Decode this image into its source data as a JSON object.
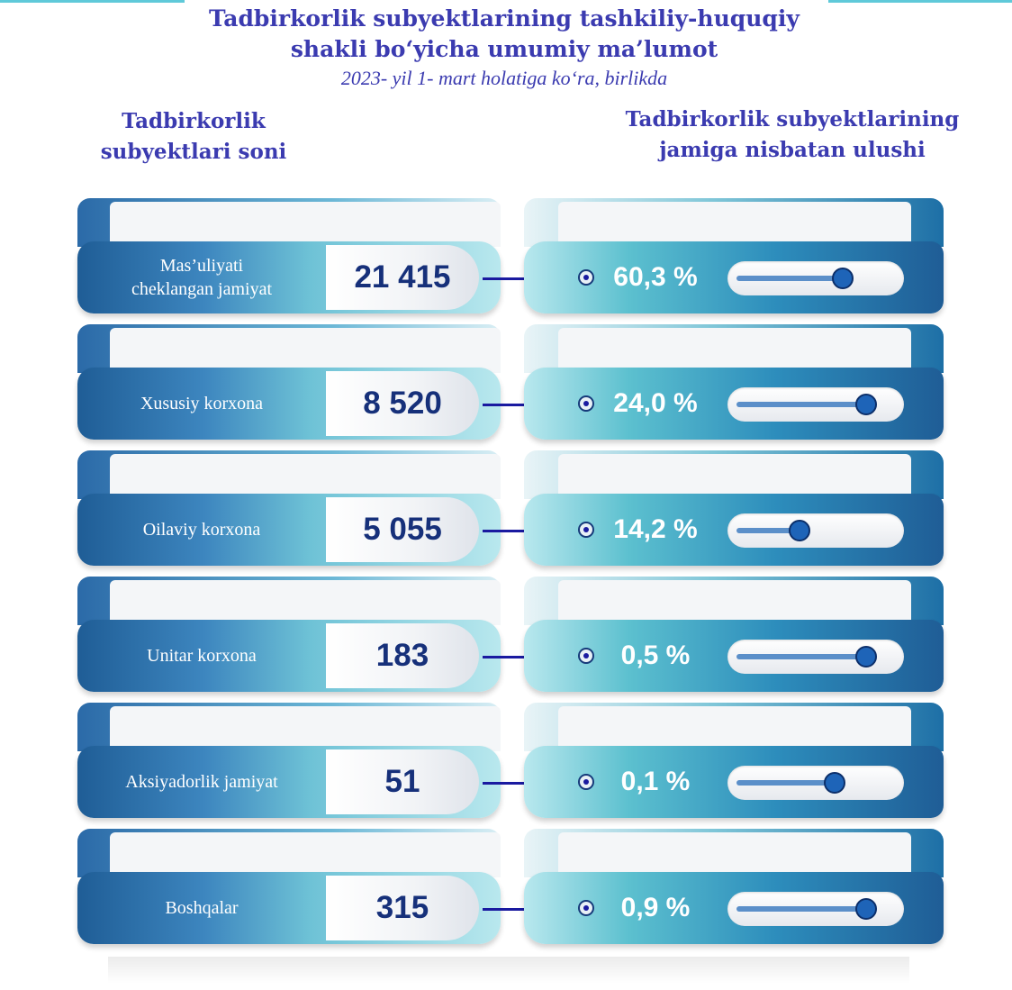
{
  "title_line1": "Tadbirkorlik subyektlarining tashkiliy-huquqiy",
  "title_line2": "shakli bo‘yicha umumiy ma’lumot",
  "subtitle": "2023- yil 1- mart holatiga ko‘ra, birlikda",
  "left_header_line1": "Tadbirkorlik",
  "left_header_line2": "subyektlari soni",
  "right_header_line1": "Tadbirkorlik  subyektlarining",
  "right_header_line2": "jamiga nisbatan  ulushi",
  "colors": {
    "title": "#3b3bb0",
    "value_text": "#16307a",
    "knob": "#1e64b8"
  },
  "rows": [
    {
      "label_line1": "Mas’uliyati",
      "label_line2": "cheklangan jamiyat",
      "value": "21 415",
      "share": "60,3 %",
      "slider_level": 0.7
    },
    {
      "label_line1": "Xususiy korxona",
      "label_line2": "",
      "value": "8 520",
      "share": "24,0 %",
      "slider_level": 0.87
    },
    {
      "label_line1": "Oilaviy korxona",
      "label_line2": "",
      "value": "5 055",
      "share": "14,2 %",
      "slider_level": 0.38
    },
    {
      "label_line1": "Unitar korxona",
      "label_line2": "",
      "value": "183",
      "share": "0,5 %",
      "slider_level": 0.87
    },
    {
      "label_line1": "Aksiyadorlik jamiyat",
      "label_line2": "",
      "value": "51",
      "share": "0,1 %",
      "slider_level": 0.64
    },
    {
      "label_line1": "Boshqalar",
      "label_line2": "",
      "value": "315",
      "share": "0,9 %",
      "slider_level": 0.87
    }
  ],
  "chart_data": {
    "type": "table",
    "categories": [
      "Mas’uliyati cheklangan jamiyat",
      "Xususiy korxona",
      "Oilaviy korxona",
      "Unitar korxona",
      "Aksiyadorlik jamiyat",
      "Boshqalar"
    ],
    "series": [
      {
        "name": "Tadbirkorlik subyektlari soni",
        "values": [
          21415,
          8520,
          5055,
          183,
          51,
          315
        ]
      },
      {
        "name": "Tadbirkorlik subyektlarining jamiga nisbatan ulushi",
        "values": [
          60.3,
          24.0,
          14.2,
          0.5,
          0.1,
          0.9
        ]
      }
    ],
    "title": "Tadbirkorlik subyektlarining tashkiliy-huquqiy shakli bo‘yicha umumiy ma’lumot",
    "subtitle": "2023- yil 1- mart holatiga ko‘ra, birlikda"
  }
}
